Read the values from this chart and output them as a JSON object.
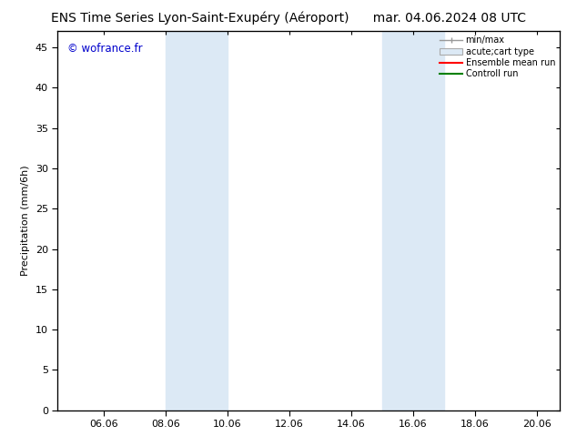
{
  "title_left": "ENS Time Series Lyon-Saint-Exupéry (Aéroport)",
  "title_right": "mar. 04.06.2024 08 UTC",
  "ylabel": "Precipitation (mm/6h)",
  "watermark": "© wofrance.fr",
  "watermark_color": "#0000cc",
  "background_color": "#ffffff",
  "plot_bg_color": "#ffffff",
  "xlim_start": 4.5,
  "xlim_end": 20.75,
  "ylim": [
    0,
    47
  ],
  "xtick_labels": [
    "06.06",
    "08.06",
    "10.06",
    "12.06",
    "14.06",
    "16.06",
    "18.06",
    "20.06"
  ],
  "xtick_positions": [
    6,
    8,
    10,
    12,
    14,
    16,
    18,
    20
  ],
  "ytick_positions": [
    0,
    5,
    10,
    15,
    20,
    25,
    30,
    35,
    40,
    45
  ],
  "shaded_regions": [
    {
      "xmin": 8.0,
      "xmax": 10.0,
      "color": "#dce9f5"
    },
    {
      "xmin": 15.0,
      "xmax": 17.0,
      "color": "#dce9f5"
    }
  ],
  "legend_entries": [
    {
      "label": "min/max",
      "type": "errorbar",
      "color": "#aaaaaa"
    },
    {
      "label": "acute;cart type",
      "type": "bar",
      "color": "#dce9f5",
      "edgecolor": "#aaaaaa"
    },
    {
      "label": "Ensemble mean run",
      "type": "line",
      "color": "#ff0000"
    },
    {
      "label": "Controll run",
      "type": "line",
      "color": "#008000"
    }
  ],
  "title_fontsize": 10,
  "tick_fontsize": 8,
  "label_fontsize": 8,
  "legend_fontsize": 7
}
